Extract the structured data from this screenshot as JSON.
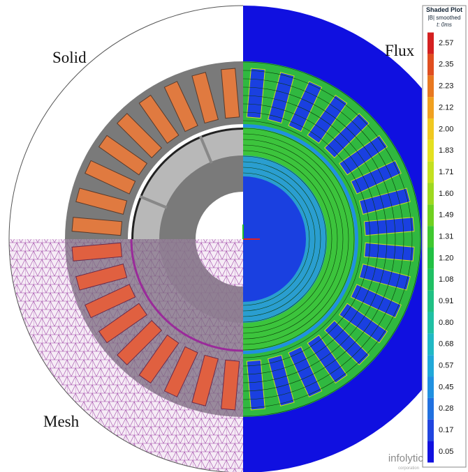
{
  "labels": {
    "solid": "Solid",
    "flux": "Flux",
    "mesh": "Mesh"
  },
  "legend": {
    "title": "Shaded Plot",
    "subtitle": "|B| smoothed",
    "time": "t: 0ms",
    "entries": [
      {
        "label": "2.57",
        "color": "#d42020"
      },
      {
        "label": "2.35",
        "color": "#e04e20"
      },
      {
        "label": "2.23",
        "color": "#e87820"
      },
      {
        "label": "2.12",
        "color": "#f0a020"
      },
      {
        "label": "2.00",
        "color": "#f0c820"
      },
      {
        "label": "1.83",
        "color": "#e4e020"
      },
      {
        "label": "1.71",
        "color": "#c4e020"
      },
      {
        "label": "1.60",
        "color": "#9ed820"
      },
      {
        "label": "1.49",
        "color": "#70d020"
      },
      {
        "label": "1.31",
        "color": "#40c830"
      },
      {
        "label": "1.20",
        "color": "#22c044"
      },
      {
        "label": "1.08",
        "color": "#20c064"
      },
      {
        "label": "0.91",
        "color": "#20c084"
      },
      {
        "label": "0.80",
        "color": "#20c0a4"
      },
      {
        "label": "0.68",
        "color": "#20b8c4"
      },
      {
        "label": "0.57",
        "color": "#20a8d8"
      },
      {
        "label": "0.45",
        "color": "#2090e0"
      },
      {
        "label": "0.28",
        "color": "#2070e0"
      },
      {
        "label": "0.17",
        "color": "#2044e0"
      },
      {
        "label": "0.05",
        "color": "#1010e0"
      }
    ]
  },
  "logo": {
    "name": "infolytica",
    "sub": "corporation"
  }
}
